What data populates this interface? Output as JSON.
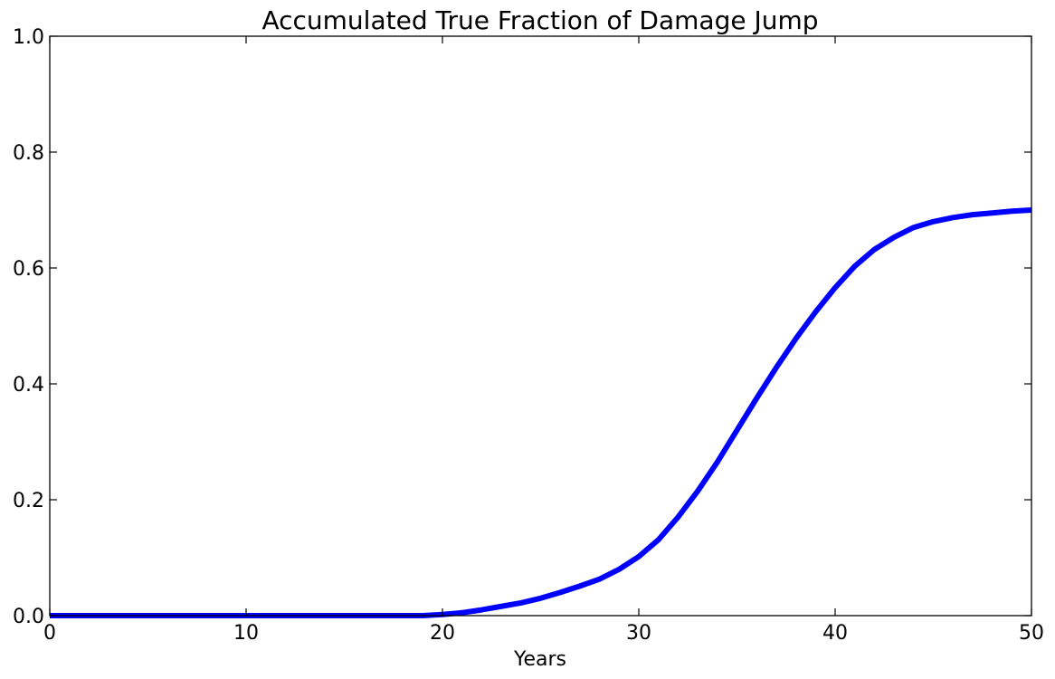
{
  "chart_data": {
    "type": "line",
    "title": "Accumulated True Fraction of Damage Jump",
    "xlabel": "Years",
    "ylabel": "",
    "xlim": [
      0,
      50
    ],
    "ylim": [
      0.0,
      1.0
    ],
    "x_ticks": [
      0,
      10,
      20,
      30,
      40,
      50
    ],
    "y_ticks": [
      0.0,
      0.2,
      0.4,
      0.6,
      0.8,
      1.0
    ],
    "x_tick_labels": [
      "0",
      "10",
      "20",
      "30",
      "40",
      "50"
    ],
    "y_tick_labels": [
      "0.0",
      "0.2",
      "0.4",
      "0.6",
      "0.8",
      "1.0"
    ],
    "grid": false,
    "series": [
      {
        "color": "#0000ff",
        "x": [
          0,
          5,
          10,
          15,
          18,
          19,
          20,
          21,
          22,
          23,
          24,
          25,
          26,
          27,
          28,
          29,
          30,
          31,
          32,
          33,
          34,
          35,
          36,
          37,
          38,
          39,
          40,
          41,
          42,
          43,
          44,
          45,
          46,
          47,
          48,
          49,
          50
        ],
        "y": [
          0.0,
          0.0,
          0.0,
          0.0,
          0.0,
          0.0,
          0.002,
          0.005,
          0.01,
          0.016,
          0.022,
          0.03,
          0.04,
          0.051,
          0.063,
          0.08,
          0.102,
          0.131,
          0.17,
          0.215,
          0.265,
          0.32,
          0.375,
          0.428,
          0.478,
          0.524,
          0.566,
          0.603,
          0.632,
          0.653,
          0.67,
          0.68,
          0.687,
          0.692,
          0.695,
          0.698,
          0.7
        ]
      }
    ]
  }
}
